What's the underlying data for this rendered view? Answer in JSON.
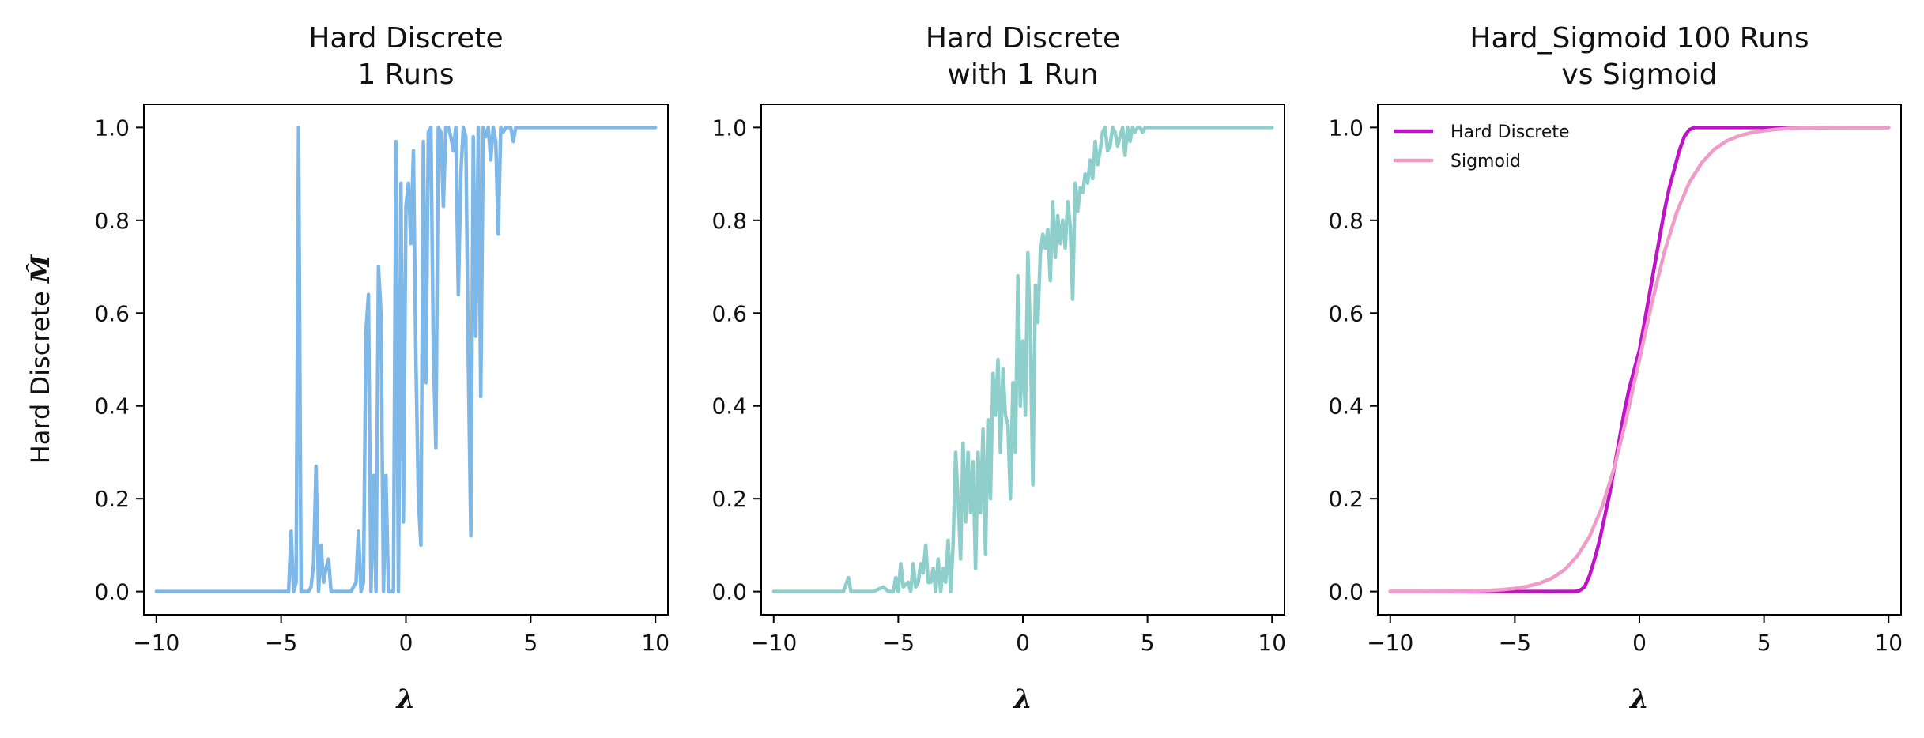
{
  "chart_data": [
    {
      "type": "line",
      "title": [
        "Hard Discrete",
        "1 Runs"
      ],
      "xlabel": "λ",
      "ylabel": "Hard Discrete",
      "ylabel_symbol": "M̂",
      "xlim": [
        -10.5,
        10.5
      ],
      "ylim": [
        -0.05,
        1.05
      ],
      "xticks": [
        -10,
        -5,
        0,
        5,
        10
      ],
      "yticks": [
        0.0,
        0.2,
        0.4,
        0.6,
        0.8,
        1.0
      ],
      "xtick_labels": [
        "−10",
        "−5",
        "0",
        "5",
        "10"
      ],
      "ytick_labels": [
        "0.0",
        "0.2",
        "0.4",
        "0.6",
        "0.8",
        "1.0"
      ],
      "grid": false,
      "series": [
        {
          "color": "#7db8e8",
          "x": [
            -10,
            -4.7,
            -4.6,
            -4.5,
            -4.4,
            -4.3,
            -4.2,
            -4.1,
            -4.0,
            -3.9,
            -3.8,
            -3.7,
            -3.6,
            -3.5,
            -3.4,
            -3.3,
            -3.2,
            -3.1,
            -3.0,
            -2.9,
            -2.8,
            -2.5,
            -2.2,
            -2.0,
            -1.9,
            -1.8,
            -1.7,
            -1.6,
            -1.5,
            -1.4,
            -1.3,
            -1.2,
            -1.1,
            -1.0,
            -0.9,
            -0.8,
            -0.7,
            -0.6,
            -0.5,
            -0.4,
            -0.3,
            -0.2,
            -0.1,
            0.0,
            0.1,
            0.2,
            0.3,
            0.4,
            0.5,
            0.6,
            0.7,
            0.8,
            0.9,
            1.0,
            1.1,
            1.2,
            1.3,
            1.4,
            1.5,
            1.6,
            1.7,
            1.8,
            1.9,
            2.0,
            2.1,
            2.2,
            2.3,
            2.4,
            2.5,
            2.6,
            2.7,
            2.8,
            2.9,
            3.0,
            3.1,
            3.2,
            3.3,
            3.4,
            3.5,
            3.6,
            3.7,
            3.8,
            3.9,
            4.0,
            4.1,
            4.2,
            4.3,
            4.4,
            4.5,
            4.6,
            4.7,
            4.8,
            4.9,
            5.0,
            6.0,
            8.0,
            10.0
          ],
          "y": [
            0,
            0,
            0.13,
            0,
            0.02,
            1.0,
            0,
            0,
            0,
            0,
            0.01,
            0.06,
            0.27,
            0,
            0.1,
            0.02,
            0.05,
            0.07,
            0,
            0,
            0,
            0,
            0,
            0.02,
            0.13,
            0,
            0.02,
            0.56,
            0.64,
            0,
            0.25,
            0,
            0.7,
            0.6,
            0,
            0.25,
            0,
            0,
            0,
            0.97,
            0,
            0.88,
            0.15,
            0.83,
            0.88,
            0.75,
            0.95,
            0.5,
            0.2,
            0.1,
            0.97,
            0.45,
            0.99,
            1.0,
            0.52,
            0.31,
            1.0,
            0.99,
            0.83,
            1.0,
            1.0,
            0.98,
            0.95,
            1.0,
            0.64,
            0.9,
            1.0,
            0.98,
            0.5,
            0.12,
            0.98,
            0.55,
            1.0,
            0.42,
            1.0,
            0.98,
            1.0,
            0.93,
            1.0,
            0.97,
            0.77,
            1.0,
            0.99,
            1.0,
            1.0,
            1.0,
            0.97,
            1.0,
            1.0,
            1.0,
            1.0,
            1.0,
            1.0,
            1.0,
            1.0,
            1.0,
            1.0
          ]
        }
      ]
    },
    {
      "type": "line",
      "title": [
        "Hard Discrete",
        "with 1 Run"
      ],
      "xlabel": "λ",
      "xlim": [
        -10.5,
        10.5
      ],
      "ylim": [
        -0.05,
        1.05
      ],
      "xticks": [
        -10,
        -5,
        0,
        5,
        10
      ],
      "yticks": [
        0.0,
        0.2,
        0.4,
        0.6,
        0.8,
        1.0
      ],
      "xtick_labels": [
        "−10",
        "−5",
        "0",
        "5",
        "10"
      ],
      "ytick_labels": [
        "0.0",
        "0.2",
        "0.4",
        "0.6",
        "0.8",
        "1.0"
      ],
      "grid": false,
      "series": [
        {
          "color": "#8ecfcb",
          "x": [
            -10,
            -7.2,
            -7.0,
            -6.9,
            -6.8,
            -6.0,
            -5.6,
            -5.4,
            -5.2,
            -5.1,
            -5.0,
            -4.9,
            -4.8,
            -4.6,
            -4.5,
            -4.4,
            -4.3,
            -4.2,
            -4.1,
            -4.0,
            -3.9,
            -3.8,
            -3.7,
            -3.6,
            -3.5,
            -3.4,
            -3.3,
            -3.2,
            -3.1,
            -3.0,
            -2.9,
            -2.8,
            -2.7,
            -2.6,
            -2.5,
            -2.4,
            -2.3,
            -2.2,
            -2.1,
            -2.0,
            -1.9,
            -1.8,
            -1.7,
            -1.6,
            -1.5,
            -1.4,
            -1.3,
            -1.2,
            -1.1,
            -1.0,
            -0.9,
            -0.8,
            -0.7,
            -0.6,
            -0.5,
            -0.4,
            -0.3,
            -0.2,
            -0.1,
            0.0,
            0.1,
            0.2,
            0.3,
            0.4,
            0.5,
            0.6,
            0.7,
            0.8,
            0.9,
            1.0,
            1.1,
            1.2,
            1.3,
            1.4,
            1.5,
            1.6,
            1.7,
            1.8,
            1.9,
            2.0,
            2.1,
            2.2,
            2.3,
            2.4,
            2.5,
            2.6,
            2.7,
            2.8,
            2.9,
            3.0,
            3.1,
            3.2,
            3.3,
            3.4,
            3.5,
            3.6,
            3.7,
            3.8,
            3.9,
            4.0,
            4.1,
            4.2,
            4.3,
            4.4,
            4.5,
            4.6,
            4.7,
            4.8,
            4.9,
            5.0,
            5.2,
            5.4,
            5.6,
            5.8,
            6.0,
            6.2,
            6.4,
            7.0,
            8.0,
            10.0
          ],
          "y": [
            0,
            0,
            0.03,
            0,
            0,
            0,
            0.01,
            0,
            0,
            0.03,
            0,
            0.06,
            0.01,
            0.02,
            0,
            0.06,
            0.01,
            0.02,
            0.06,
            0.04,
            0.1,
            0.02,
            0.02,
            0.05,
            0,
            0.07,
            0,
            0.05,
            0.02,
            0.11,
            0.0,
            0.1,
            0.3,
            0.2,
            0.07,
            0.32,
            0.15,
            0.3,
            0.17,
            0.28,
            0.05,
            0.3,
            0.17,
            0.35,
            0.08,
            0.37,
            0.2,
            0.47,
            0.38,
            0.5,
            0.3,
            0.48,
            0.38,
            0.36,
            0.2,
            0.45,
            0.3,
            0.68,
            0.4,
            0.54,
            0.38,
            0.73,
            0.55,
            0.23,
            0.66,
            0.58,
            0.73,
            0.77,
            0.74,
            0.78,
            0.67,
            0.84,
            0.72,
            0.81,
            0.75,
            0.8,
            0.74,
            0.84,
            0.79,
            0.63,
            0.88,
            0.82,
            0.87,
            0.86,
            0.9,
            0.88,
            0.93,
            0.89,
            0.97,
            0.92,
            0.95,
            0.99,
            1.0,
            0.95,
            0.96,
            1.0,
            0.99,
            0.96,
            0.98,
            1.0,
            0.94,
            1.0,
            0.97,
            1.0,
            0.99,
            1.0,
            1.0,
            0.99,
            1.0,
            1.0,
            1.0,
            1.0,
            1.0,
            1.0,
            1.0,
            1.0,
            1.0,
            1.0,
            1.0,
            1.0
          ]
        }
      ]
    },
    {
      "type": "line",
      "title": [
        "Hard_Sigmoid 100 Runs",
        "vs Sigmoid"
      ],
      "xlabel": "λ",
      "xlim": [
        -10.5,
        10.5
      ],
      "ylim": [
        -0.05,
        1.05
      ],
      "xticks": [
        -10,
        -5,
        0,
        5,
        10
      ],
      "yticks": [
        0.0,
        0.2,
        0.4,
        0.6,
        0.8,
        1.0
      ],
      "xtick_labels": [
        "−10",
        "−5",
        "0",
        "5",
        "10"
      ],
      "ytick_labels": [
        "0.0",
        "0.2",
        "0.4",
        "0.6",
        "0.8",
        "1.0"
      ],
      "grid": false,
      "legend": "top-left",
      "series": [
        {
          "name": "Hard Discrete",
          "color": "#c012c8",
          "x": [
            -10,
            -2.6,
            -2.4,
            -2.2,
            -2.0,
            -1.8,
            -1.6,
            -1.4,
            -1.2,
            -1.0,
            -0.8,
            -0.6,
            -0.4,
            -0.2,
            0.0,
            0.2,
            0.4,
            0.6,
            0.8,
            1.0,
            1.2,
            1.4,
            1.6,
            1.8,
            2.0,
            2.2,
            2.4,
            2.6,
            3.0,
            4.0,
            6.0,
            8.0,
            10.0
          ],
          "y": [
            0,
            0,
            0.002,
            0.01,
            0.035,
            0.07,
            0.11,
            0.16,
            0.21,
            0.27,
            0.33,
            0.39,
            0.44,
            0.48,
            0.52,
            0.58,
            0.64,
            0.7,
            0.76,
            0.82,
            0.87,
            0.91,
            0.95,
            0.98,
            0.995,
            1.0,
            1.0,
            1.0,
            1.0,
            1.0,
            1.0,
            1.0,
            1.0
          ]
        },
        {
          "name": "Sigmoid",
          "color": "#f09cc8",
          "x": [
            -10,
            -9,
            -8,
            -7,
            -6,
            -5.5,
            -5,
            -4.5,
            -4,
            -3.5,
            -3,
            -2.5,
            -2,
            -1.5,
            -1,
            -0.5,
            0,
            0.5,
            1,
            1.5,
            2,
            2.5,
            3,
            3.5,
            4,
            4.5,
            5,
            5.5,
            6,
            7,
            8,
            9,
            10
          ],
          "y": [
            0.0,
            0.0001,
            0.0003,
            0.0009,
            0.0025,
            0.0041,
            0.0067,
            0.011,
            0.018,
            0.029,
            0.047,
            0.076,
            0.119,
            0.182,
            0.269,
            0.378,
            0.5,
            0.622,
            0.731,
            0.818,
            0.881,
            0.924,
            0.953,
            0.971,
            0.982,
            0.989,
            0.993,
            0.996,
            0.998,
            0.999,
            0.9997,
            0.9999,
            1.0
          ]
        }
      ]
    }
  ]
}
